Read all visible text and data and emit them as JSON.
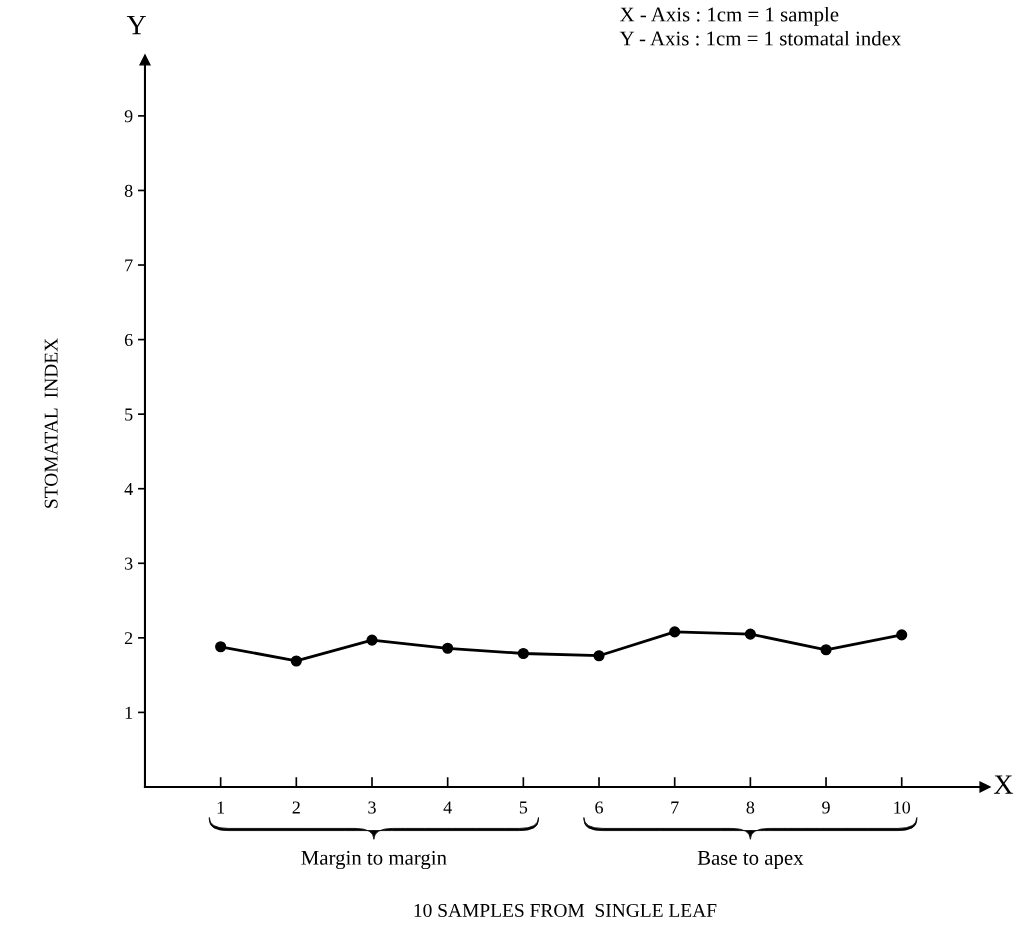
{
  "chart_data": {
    "type": "line",
    "xlabel": "10 SAMPLES FROM  SINGLE LEAF",
    "ylabel": "STOMATAL  INDEX",
    "x": [
      1,
      2,
      3,
      4,
      5,
      6,
      7,
      8,
      9,
      10
    ],
    "series": [
      {
        "color": "#000000",
        "values": [
          1.88,
          1.69,
          1.97,
          1.86,
          1.79,
          1.76,
          2.08,
          2.05,
          1.84,
          2.04
        ]
      }
    ],
    "xlim": [
      0,
      11.1
    ],
    "ylim": [
      0,
      9.75
    ],
    "xticks": [
      1,
      2,
      3,
      4,
      5,
      6,
      7,
      8,
      9,
      10
    ],
    "yticks": [
      1,
      2,
      3,
      4,
      5,
      6,
      7,
      8,
      9
    ],
    "marker": "circle",
    "line_style": "solid",
    "grid": false,
    "legend": false,
    "annotations": [
      "Y",
      "X",
      "X - Axis : 1cm = 1 sample",
      "Y - Axis : 1cm = 1 stomatal index",
      "Margin to margin",
      "Base to apex"
    ]
  }
}
